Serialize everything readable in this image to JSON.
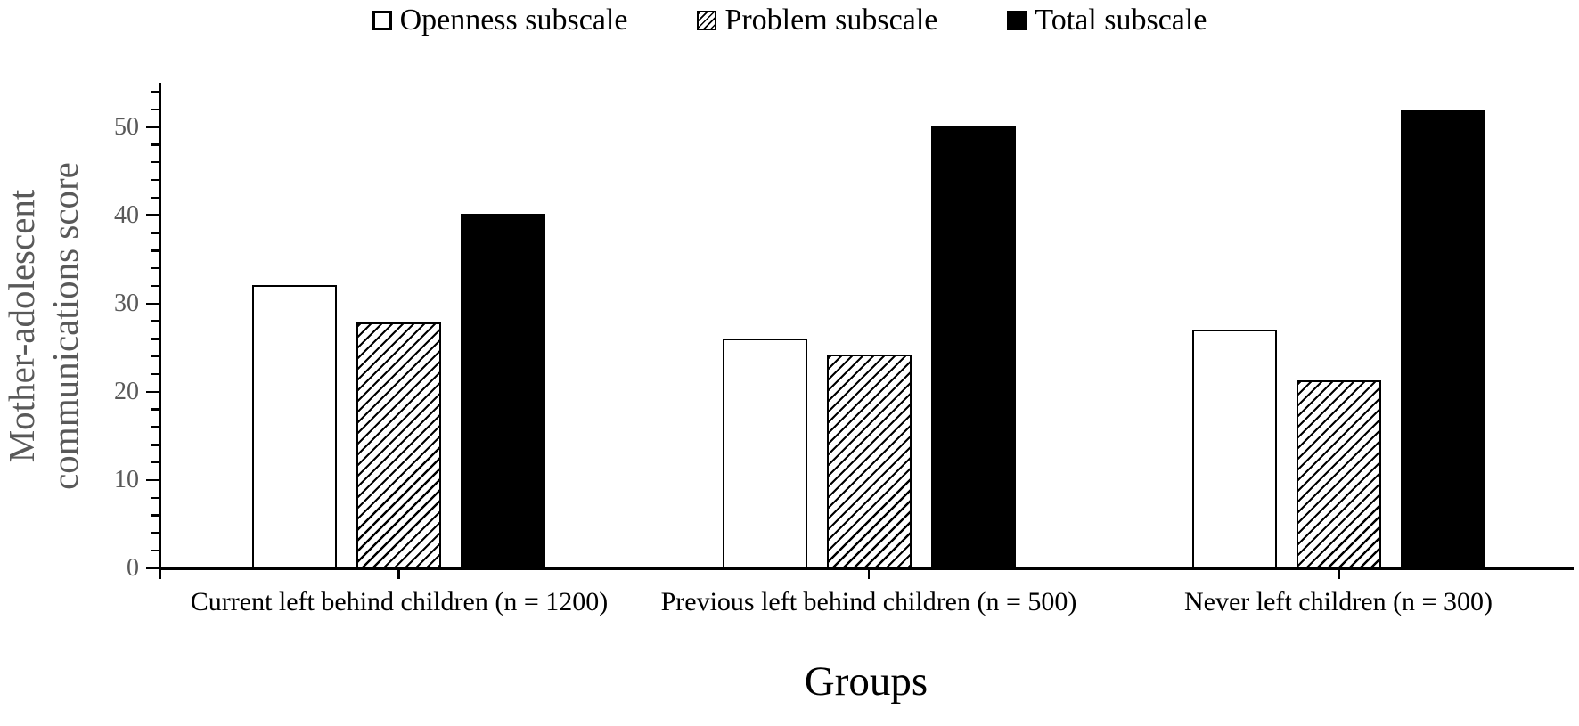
{
  "chart_data": {
    "type": "bar",
    "title": "",
    "xlabel": "Groups",
    "ylabel": "Mother-adolescent communications score",
    "ylabel_lines": [
      "Mother-adolescent",
      "communications score"
    ],
    "categories": [
      "Current left behind children (n = 1200)",
      "Previous left behind children (n = 500)",
      "Never left children (n = 300)"
    ],
    "series": [
      {
        "name": "Openness subscale",
        "pattern": "open",
        "values": [
          32.1,
          26.0,
          27.0
        ]
      },
      {
        "name": "Problem subscale",
        "pattern": "hatched",
        "values": [
          27.9,
          24.2,
          21.3
        ]
      },
      {
        "name": "Total subscale",
        "pattern": "solid",
        "values": [
          40.2,
          50.1,
          51.9
        ]
      }
    ],
    "ylim": [
      0,
      55
    ],
    "yticks_major": [
      0,
      10,
      20,
      30,
      40,
      50
    ],
    "ytick_minor_step": 2,
    "legend_position": "top",
    "grid": false
  },
  "colors": {
    "axis": "#000000",
    "tick_label": "#595959",
    "y_axis_title": "#595959",
    "category_label": "#000000",
    "x_axis_title": "#000000",
    "bar_solid_fill": "#000000",
    "bar_outline": "#000000",
    "background": "#ffffff"
  }
}
